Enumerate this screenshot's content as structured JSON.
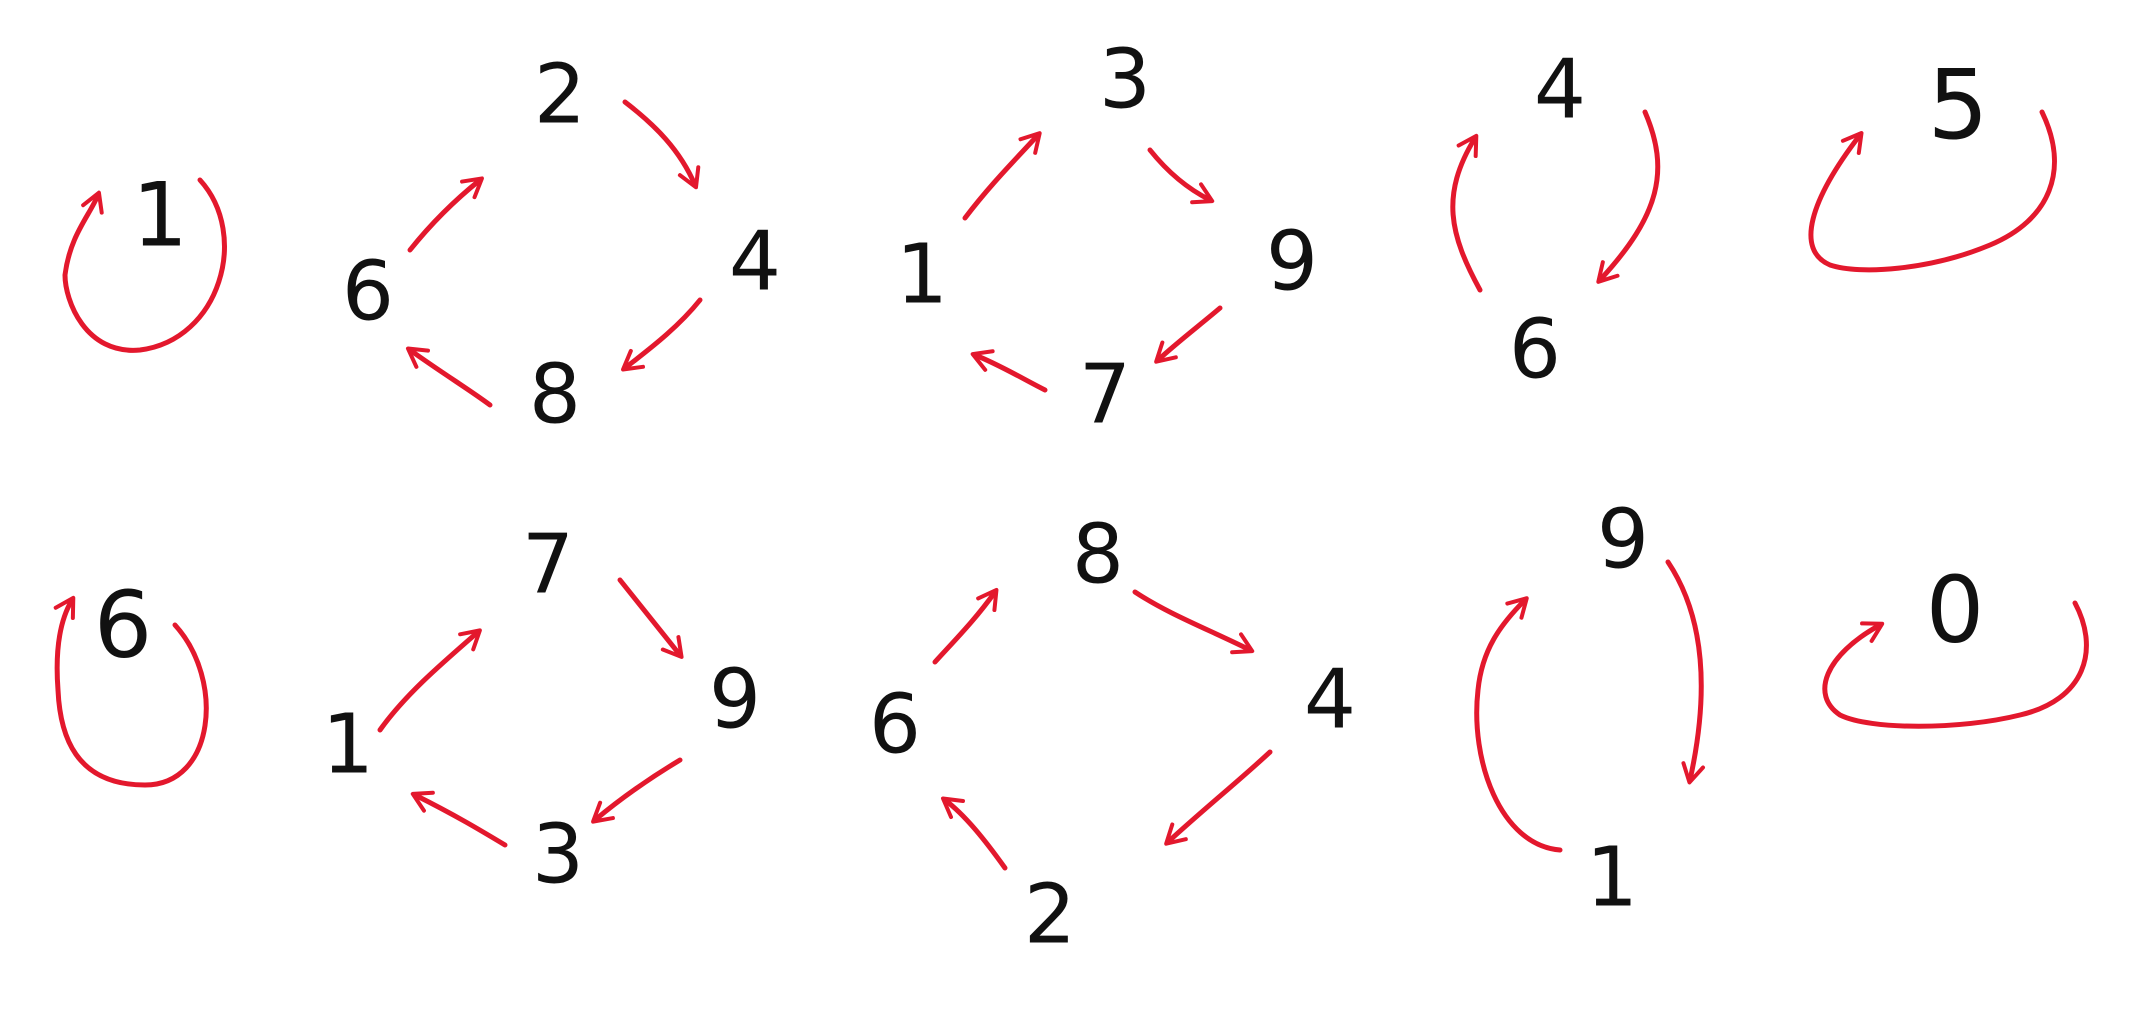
{
  "colors": {
    "digit": "#111111",
    "arrow": "#e3182d"
  },
  "cycles": [
    {
      "id": "c1",
      "digits": [
        "1"
      ]
    },
    {
      "id": "c2",
      "digits": [
        "2",
        "4",
        "8",
        "6"
      ]
    },
    {
      "id": "c3",
      "digits": [
        "3",
        "9",
        "7",
        "1"
      ]
    },
    {
      "id": "c4",
      "digits": [
        "4",
        "6"
      ]
    },
    {
      "id": "c5",
      "digits": [
        "5"
      ]
    },
    {
      "id": "c6",
      "digits": [
        "6"
      ]
    },
    {
      "id": "c7",
      "digits": [
        "7",
        "9",
        "3",
        "1"
      ]
    },
    {
      "id": "c8",
      "digits": [
        "8",
        "4",
        "2",
        "6"
      ]
    },
    {
      "id": "c9",
      "digits": [
        "9",
        "1"
      ]
    },
    {
      "id": "c10",
      "digits": [
        "0"
      ]
    }
  ]
}
